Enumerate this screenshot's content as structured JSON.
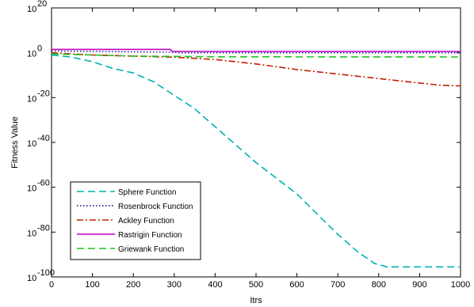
{
  "chart_data": {
    "type": "line",
    "xlabel": "Itrs",
    "ylabel": "Fitness Value",
    "xlim": [
      0,
      1000
    ],
    "ylim_exponent": [
      -100,
      20
    ],
    "yscale": "log",
    "x_ticks": [
      "0",
      "100",
      "200",
      "300",
      "400",
      "500",
      "600",
      "700",
      "800",
      "900",
      "1000"
    ],
    "y_tick_base": "10",
    "y_tick_exponents": [
      "20",
      "0",
      "-20",
      "-40",
      "-60",
      "-80",
      "-100"
    ],
    "legend_position": "bottom-left",
    "series": [
      {
        "name": "Sphere Function",
        "color": "#00b0b0",
        "dash": "dashed",
        "log10_values": [
          {
            "x": 0,
            "y": -1
          },
          {
            "x": 50,
            "y": -2
          },
          {
            "x": 100,
            "y": -4
          },
          {
            "x": 150,
            "y": -7
          },
          {
            "x": 200,
            "y": -9
          },
          {
            "x": 250,
            "y": -13
          },
          {
            "x": 300,
            "y": -19
          },
          {
            "x": 350,
            "y": -25
          },
          {
            "x": 400,
            "y": -33
          },
          {
            "x": 450,
            "y": -41
          },
          {
            "x": 500,
            "y": -49
          },
          {
            "x": 550,
            "y": -56
          },
          {
            "x": 600,
            "y": -63
          },
          {
            "x": 650,
            "y": -72
          },
          {
            "x": 700,
            "y": -81
          },
          {
            "x": 750,
            "y": -89
          },
          {
            "x": 790,
            "y": -94
          },
          {
            "x": 820,
            "y": -95.5
          },
          {
            "x": 1000,
            "y": -95.5
          }
        ]
      },
      {
        "name": "Rosenbrock Function",
        "color": "#000080",
        "dash": "dotted",
        "log10_values": [
          {
            "x": 0,
            "y": 0.8
          },
          {
            "x": 300,
            "y": 0.2
          },
          {
            "x": 310,
            "y": 0
          },
          {
            "x": 1000,
            "y": 0
          }
        ]
      },
      {
        "name": "Ackley Function",
        "color": "#c02000",
        "dash": "dashdot",
        "log10_values": [
          {
            "x": 0,
            "y": 0
          },
          {
            "x": 100,
            "y": -1
          },
          {
            "x": 200,
            "y": -1.5
          },
          {
            "x": 300,
            "y": -2
          },
          {
            "x": 400,
            "y": -3
          },
          {
            "x": 500,
            "y": -5
          },
          {
            "x": 600,
            "y": -7.5
          },
          {
            "x": 700,
            "y": -9.5
          },
          {
            "x": 800,
            "y": -11.5
          },
          {
            "x": 900,
            "y": -13.5
          },
          {
            "x": 950,
            "y": -14.5
          },
          {
            "x": 1000,
            "y": -14.8
          }
        ]
      },
      {
        "name": "Rastrigin Function",
        "color": "#c000c0",
        "dash": "solid",
        "log10_values": [
          {
            "x": 0,
            "y": 1.5
          },
          {
            "x": 290,
            "y": 1.5
          },
          {
            "x": 295,
            "y": 0.6
          },
          {
            "x": 1000,
            "y": 0.6
          }
        ]
      },
      {
        "name": "Griewank Function",
        "color": "#20c020",
        "dash": "dashed",
        "log10_values": [
          {
            "x": 0,
            "y": -0.5
          },
          {
            "x": 200,
            "y": -1.5
          },
          {
            "x": 400,
            "y": -1.8
          },
          {
            "x": 1000,
            "y": -1.9
          }
        ]
      }
    ]
  }
}
